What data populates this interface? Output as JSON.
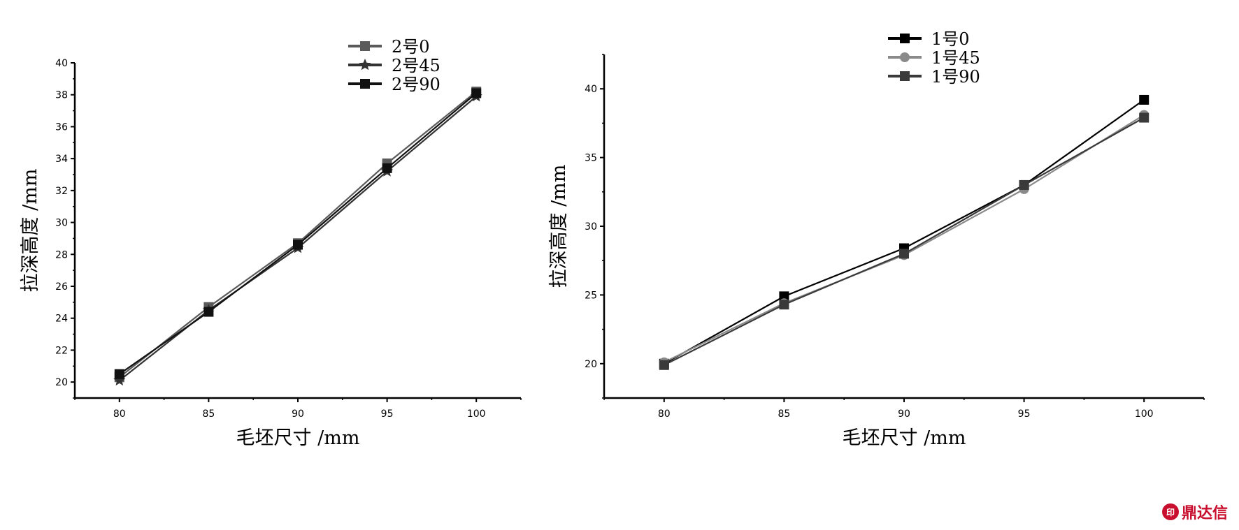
{
  "chart_data": [
    {
      "type": "line",
      "xlabel": "毛坯尺寸 /mm",
      "ylabel": "拉深高度 /mm",
      "xlim": [
        77.5,
        102.5
      ],
      "ylim": [
        19,
        40
      ],
      "xticks": [
        80,
        85,
        90,
        95,
        100
      ],
      "yticks": [
        20,
        22,
        24,
        26,
        28,
        30,
        32,
        34,
        36,
        38,
        40
      ],
      "legend_position": "top-right",
      "grid": false,
      "series": [
        {
          "name": "2号0",
          "marker": "square",
          "color": "#5a5a5a",
          "x": [
            80,
            85,
            90,
            95,
            100
          ],
          "y": [
            20.3,
            24.7,
            28.7,
            33.7,
            38.2
          ]
        },
        {
          "name": "2号45",
          "marker": "star",
          "color": "#333333",
          "x": [
            80,
            85,
            90,
            95,
            100
          ],
          "y": [
            20.1,
            24.5,
            28.4,
            33.2,
            37.9
          ]
        },
        {
          "name": "2号90",
          "marker": "square",
          "color": "#111111",
          "x": [
            80,
            85,
            90,
            95,
            100
          ],
          "y": [
            20.5,
            24.4,
            28.6,
            33.4,
            38.1
          ]
        }
      ]
    },
    {
      "type": "line",
      "xlabel": "毛坯尺寸 /mm",
      "ylabel": "拉深高度 /mm",
      "xlim": [
        77.5,
        102.5
      ],
      "ylim": [
        17.5,
        42.5
      ],
      "xticks": [
        80,
        85,
        90,
        95,
        100
      ],
      "yticks": [
        20,
        25,
        30,
        35,
        40
      ],
      "legend_position": "top-right",
      "grid": false,
      "series": [
        {
          "name": "1号0",
          "marker": "square",
          "color": "#000000",
          "x": [
            80,
            85,
            90,
            95,
            100
          ],
          "y": [
            20.0,
            24.9,
            28.4,
            33.0,
            39.2
          ]
        },
        {
          "name": "1号45",
          "marker": "circle",
          "color": "#8a8a8a",
          "x": [
            80,
            85,
            90,
            95,
            100
          ],
          "y": [
            20.1,
            24.4,
            27.9,
            32.7,
            38.1
          ]
        },
        {
          "name": "1号90",
          "marker": "square",
          "color": "#3a3a3a",
          "x": [
            80,
            85,
            90,
            95,
            100
          ],
          "y": [
            19.9,
            24.3,
            28.0,
            33.0,
            37.9
          ]
        }
      ]
    }
  ],
  "watermark": {
    "text": "鼎达信"
  }
}
